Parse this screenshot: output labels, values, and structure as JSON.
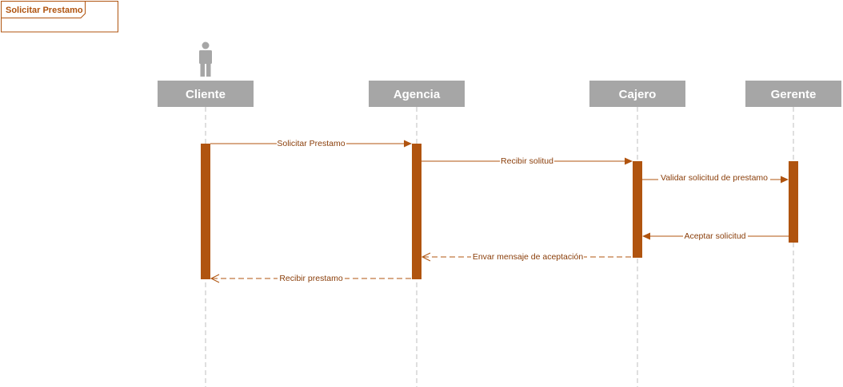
{
  "frame": {
    "title": "Solicitar Prestamo"
  },
  "lifelines": [
    {
      "id": "cliente",
      "label": "Cliente",
      "actor": true
    },
    {
      "id": "agencia",
      "label": "Agencia",
      "actor": false
    },
    {
      "id": "cajero",
      "label": "Cajero",
      "actor": false
    },
    {
      "id": "gerente",
      "label": "Gerente",
      "actor": false
    }
  ],
  "messages": [
    {
      "from": "cliente",
      "to": "agencia",
      "label": "Solicitar Prestamo",
      "kind": "sync"
    },
    {
      "from": "agencia",
      "to": "cajero",
      "label": "Recibir solitud",
      "kind": "sync"
    },
    {
      "from": "cajero",
      "to": "gerente",
      "label": "Validar solicitud de prestamo",
      "kind": "sync"
    },
    {
      "from": "gerente",
      "to": "cajero",
      "label": "Aceptar solicitud",
      "kind": "sync"
    },
    {
      "from": "cajero",
      "to": "agencia",
      "label": "Envar mensaje de aceptación",
      "kind": "reply"
    },
    {
      "from": "agencia",
      "to": "cliente",
      "label": "Recibir prestamo",
      "kind": "reply"
    }
  ],
  "colors": {
    "accent": "#b0540f",
    "head": "#a6a6a6",
    "lifeline": "#bfbfbf",
    "actor": "#a6a6a6"
  }
}
